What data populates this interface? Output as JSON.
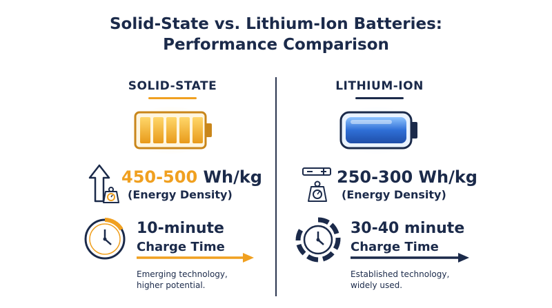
{
  "title": {
    "line1": "Solid-State vs. Lithium-Ion Batteries:",
    "line2": "Performance Comparison"
  },
  "colors": {
    "navy": "#1b2a4a",
    "orange": "#f0a020",
    "blue": "#2f6fd6"
  },
  "left": {
    "heading": "SOLID-STATE",
    "density_value": "450-500",
    "density_unit": "Wh/kg",
    "density_label": "(Energy Density)",
    "charge_value": "10-minute",
    "charge_label": "Charge Time",
    "note_line1": "Emerging technology,",
    "note_line2": "higher potential.",
    "icons": [
      "battery-icon",
      "up-arrow-icon",
      "weight-scale-icon",
      "clock-icon",
      "right-arrow-icon"
    ]
  },
  "right": {
    "heading": "LITHIUM-ION",
    "density_value": "250-300",
    "density_unit": "Wh/kg",
    "density_label": "(Energy Density)",
    "charge_value": "30-40 minute",
    "charge_label": "Charge Time",
    "note_line1": "Established technology,",
    "note_line2": "widely used.",
    "icons": [
      "battery-icon",
      "balance-icon",
      "weight-scale-icon",
      "clock-icon",
      "right-arrow-icon"
    ]
  }
}
